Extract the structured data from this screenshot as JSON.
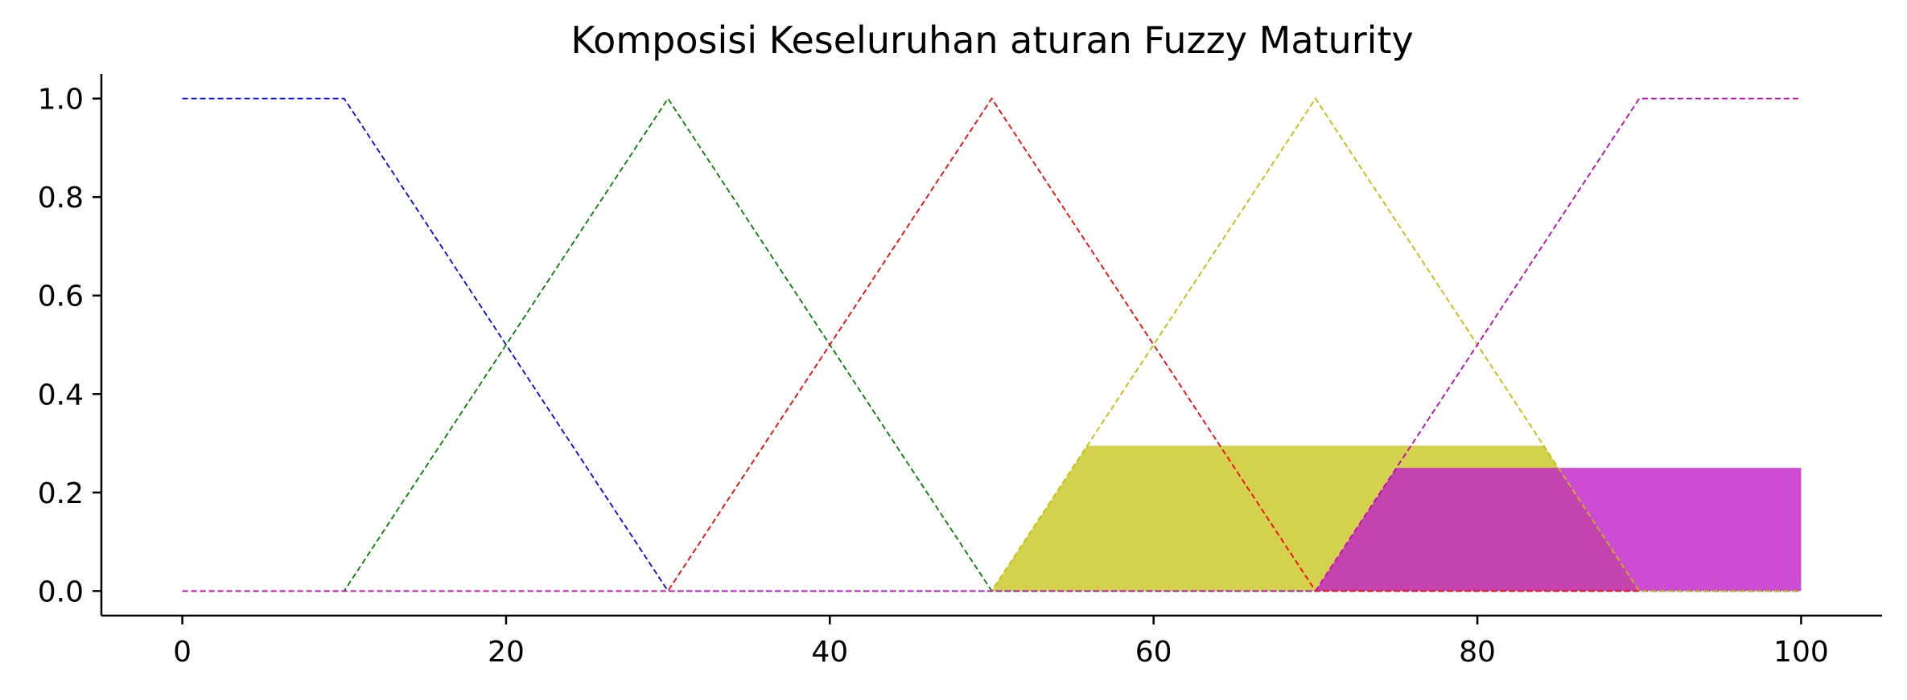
{
  "chart_data": {
    "type": "area",
    "title": "Komposisi Keseluruhan aturan Fuzzy Maturity",
    "xlabel": "",
    "ylabel": "",
    "xlim": [
      -5,
      105
    ],
    "ylim": [
      -0.05,
      1.05
    ],
    "x_ticks": [
      0,
      20,
      40,
      60,
      80,
      100
    ],
    "x_tick_labels": [
      "0",
      "20",
      "40",
      "60",
      "80",
      "100"
    ],
    "y_ticks": [
      0.0,
      0.2,
      0.4,
      0.6,
      0.8,
      1.0
    ],
    "y_tick_labels": [
      "0.0",
      "0.2",
      "0.4",
      "0.6",
      "0.8",
      "1.0"
    ],
    "grid": false,
    "spines": [
      "left",
      "bottom"
    ],
    "membership_functions": [
      {
        "color": "#0000ff",
        "x": [
          0,
          10,
          30,
          100
        ],
        "y": [
          1,
          1,
          0,
          0
        ]
      },
      {
        "color": "#008000",
        "x": [
          0,
          10,
          30,
          50,
          100
        ],
        "y": [
          0,
          0,
          1,
          0,
          0
        ]
      },
      {
        "color": "#ff0000",
        "x": [
          0,
          30,
          50,
          70,
          100
        ],
        "y": [
          0,
          0,
          1,
          0,
          0
        ]
      },
      {
        "color": "#bfbf00",
        "x": [
          0,
          50,
          70,
          90,
          100
        ],
        "y": [
          0,
          0,
          1,
          0,
          0
        ]
      },
      {
        "color": "#bf00bf",
        "x": [
          0,
          70,
          90,
          100
        ],
        "y": [
          0,
          0,
          1,
          1
        ]
      }
    ],
    "filled_regions": [
      {
        "color": "#c8c620",
        "opacity": 0.8,
        "x": [
          50,
          55.9,
          84.1,
          90
        ],
        "y": [
          0,
          0.295,
          0.295,
          0
        ]
      },
      {
        "color": "#c21fc8",
        "opacity": 0.8,
        "x": [
          70,
          75,
          100,
          100
        ],
        "y": [
          0,
          0.25,
          0.25,
          0
        ]
      }
    ]
  }
}
